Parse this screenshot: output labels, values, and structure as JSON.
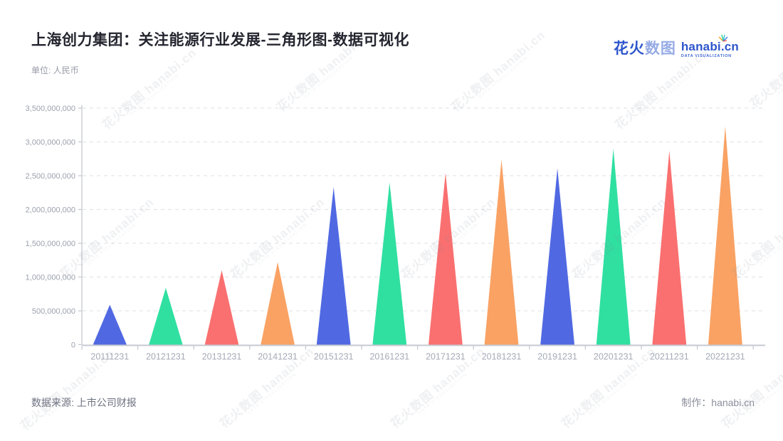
{
  "header": {
    "title": "上海创力集团：关注能源行业发展-三角形图-数据可视化",
    "unit_label": "单位: 人民币"
  },
  "logo": {
    "cjk_bold": "花火",
    "cjk_light": "数图",
    "latin": "hanabi.cn",
    "tagline": "DATA VISUALIZATION",
    "primary_color": "#2e56cc",
    "light_color": "#96abe6",
    "spark_colors": [
      "#f5a623",
      "#f0545c",
      "#2ecc8f",
      "#29c5d6",
      "#4a7bd9"
    ]
  },
  "watermark": {
    "text": "花火数图 hanabi.cn",
    "tagline": "DATA VISUALIZATION"
  },
  "chart_data": {
    "type": "bar",
    "mark_shape": "triangle",
    "categories": [
      "20111231",
      "20121231",
      "20131231",
      "20141231",
      "20151231",
      "20161231",
      "20171231",
      "20181231",
      "20191231",
      "20201231",
      "20211231",
      "20221231"
    ],
    "values": [
      590000000,
      840000000,
      1100000000,
      1220000000,
      2330000000,
      2400000000,
      2540000000,
      2740000000,
      2610000000,
      2900000000,
      2870000000,
      3230000000
    ],
    "colors": [
      "#5069e2",
      "#30e0a1",
      "#fa7070",
      "#f9a264"
    ],
    "title": "上海创力集团：关注能源行业发展-三角形图-数据可视化",
    "xlabel": "",
    "ylabel": "单位: 人民币",
    "ylim": [
      0,
      3500000000
    ],
    "y_tick_step": 500000000,
    "y_tick_labels": [
      "0",
      "500,000,000",
      "1,000,000,000",
      "1,500,000,000",
      "2,000,000,000",
      "2,500,000,000",
      "3,000,000,000",
      "3,500,000,000"
    ],
    "grid": "dashed-horizontal",
    "legend": "none",
    "axis_color": "#c6c9d1",
    "grid_color": "#e3e5ea",
    "tick_label_color": "#9ba1ad",
    "x_label_color": "#a4aab6"
  },
  "footer": {
    "source": "数据来源: 上市公司财报",
    "credit": "制作：hanabi.cn"
  }
}
